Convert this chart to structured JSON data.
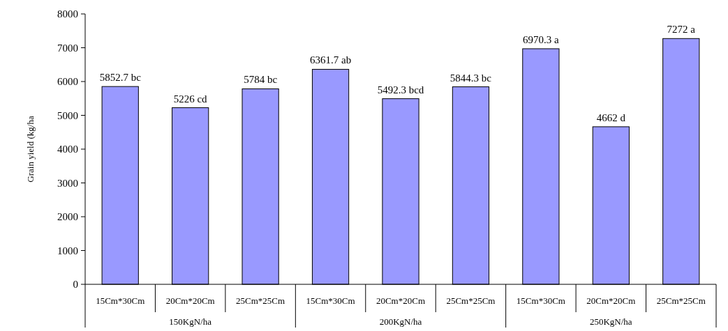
{
  "chart_data": {
    "type": "bar",
    "ylabel": "Grain yield (kg/ha",
    "categories": [
      "15Cm*30Cm",
      "20Cm*20Cm",
      "25Cm*25Cm",
      "15Cm*30Cm",
      "20Cm*20Cm",
      "25Cm*25Cm",
      "15Cm*30Cm",
      "20Cm*20Cm",
      "25Cm*25Cm"
    ],
    "values": [
      5852.7,
      5226,
      5784,
      6361.7,
      5492.3,
      5844.3,
      6970.3,
      4662,
      7272
    ],
    "value_labels": [
      "5852.7 bc",
      "5226 cd",
      "5784 bc",
      "6361.7 ab",
      "5492.3 bcd",
      "5844.3 bc",
      "6970.3 a",
      "4662 d",
      "7272 a"
    ],
    "color": "#9999ff",
    "ylim": [
      0,
      8000
    ],
    "yticks": [
      0,
      1000,
      2000,
      3000,
      4000,
      5000,
      6000,
      7000,
      8000
    ],
    "annotations": [
      "150KgN/ha",
      "200KgN/ha",
      "250KgN/ha"
    ],
    "grid": false
  }
}
